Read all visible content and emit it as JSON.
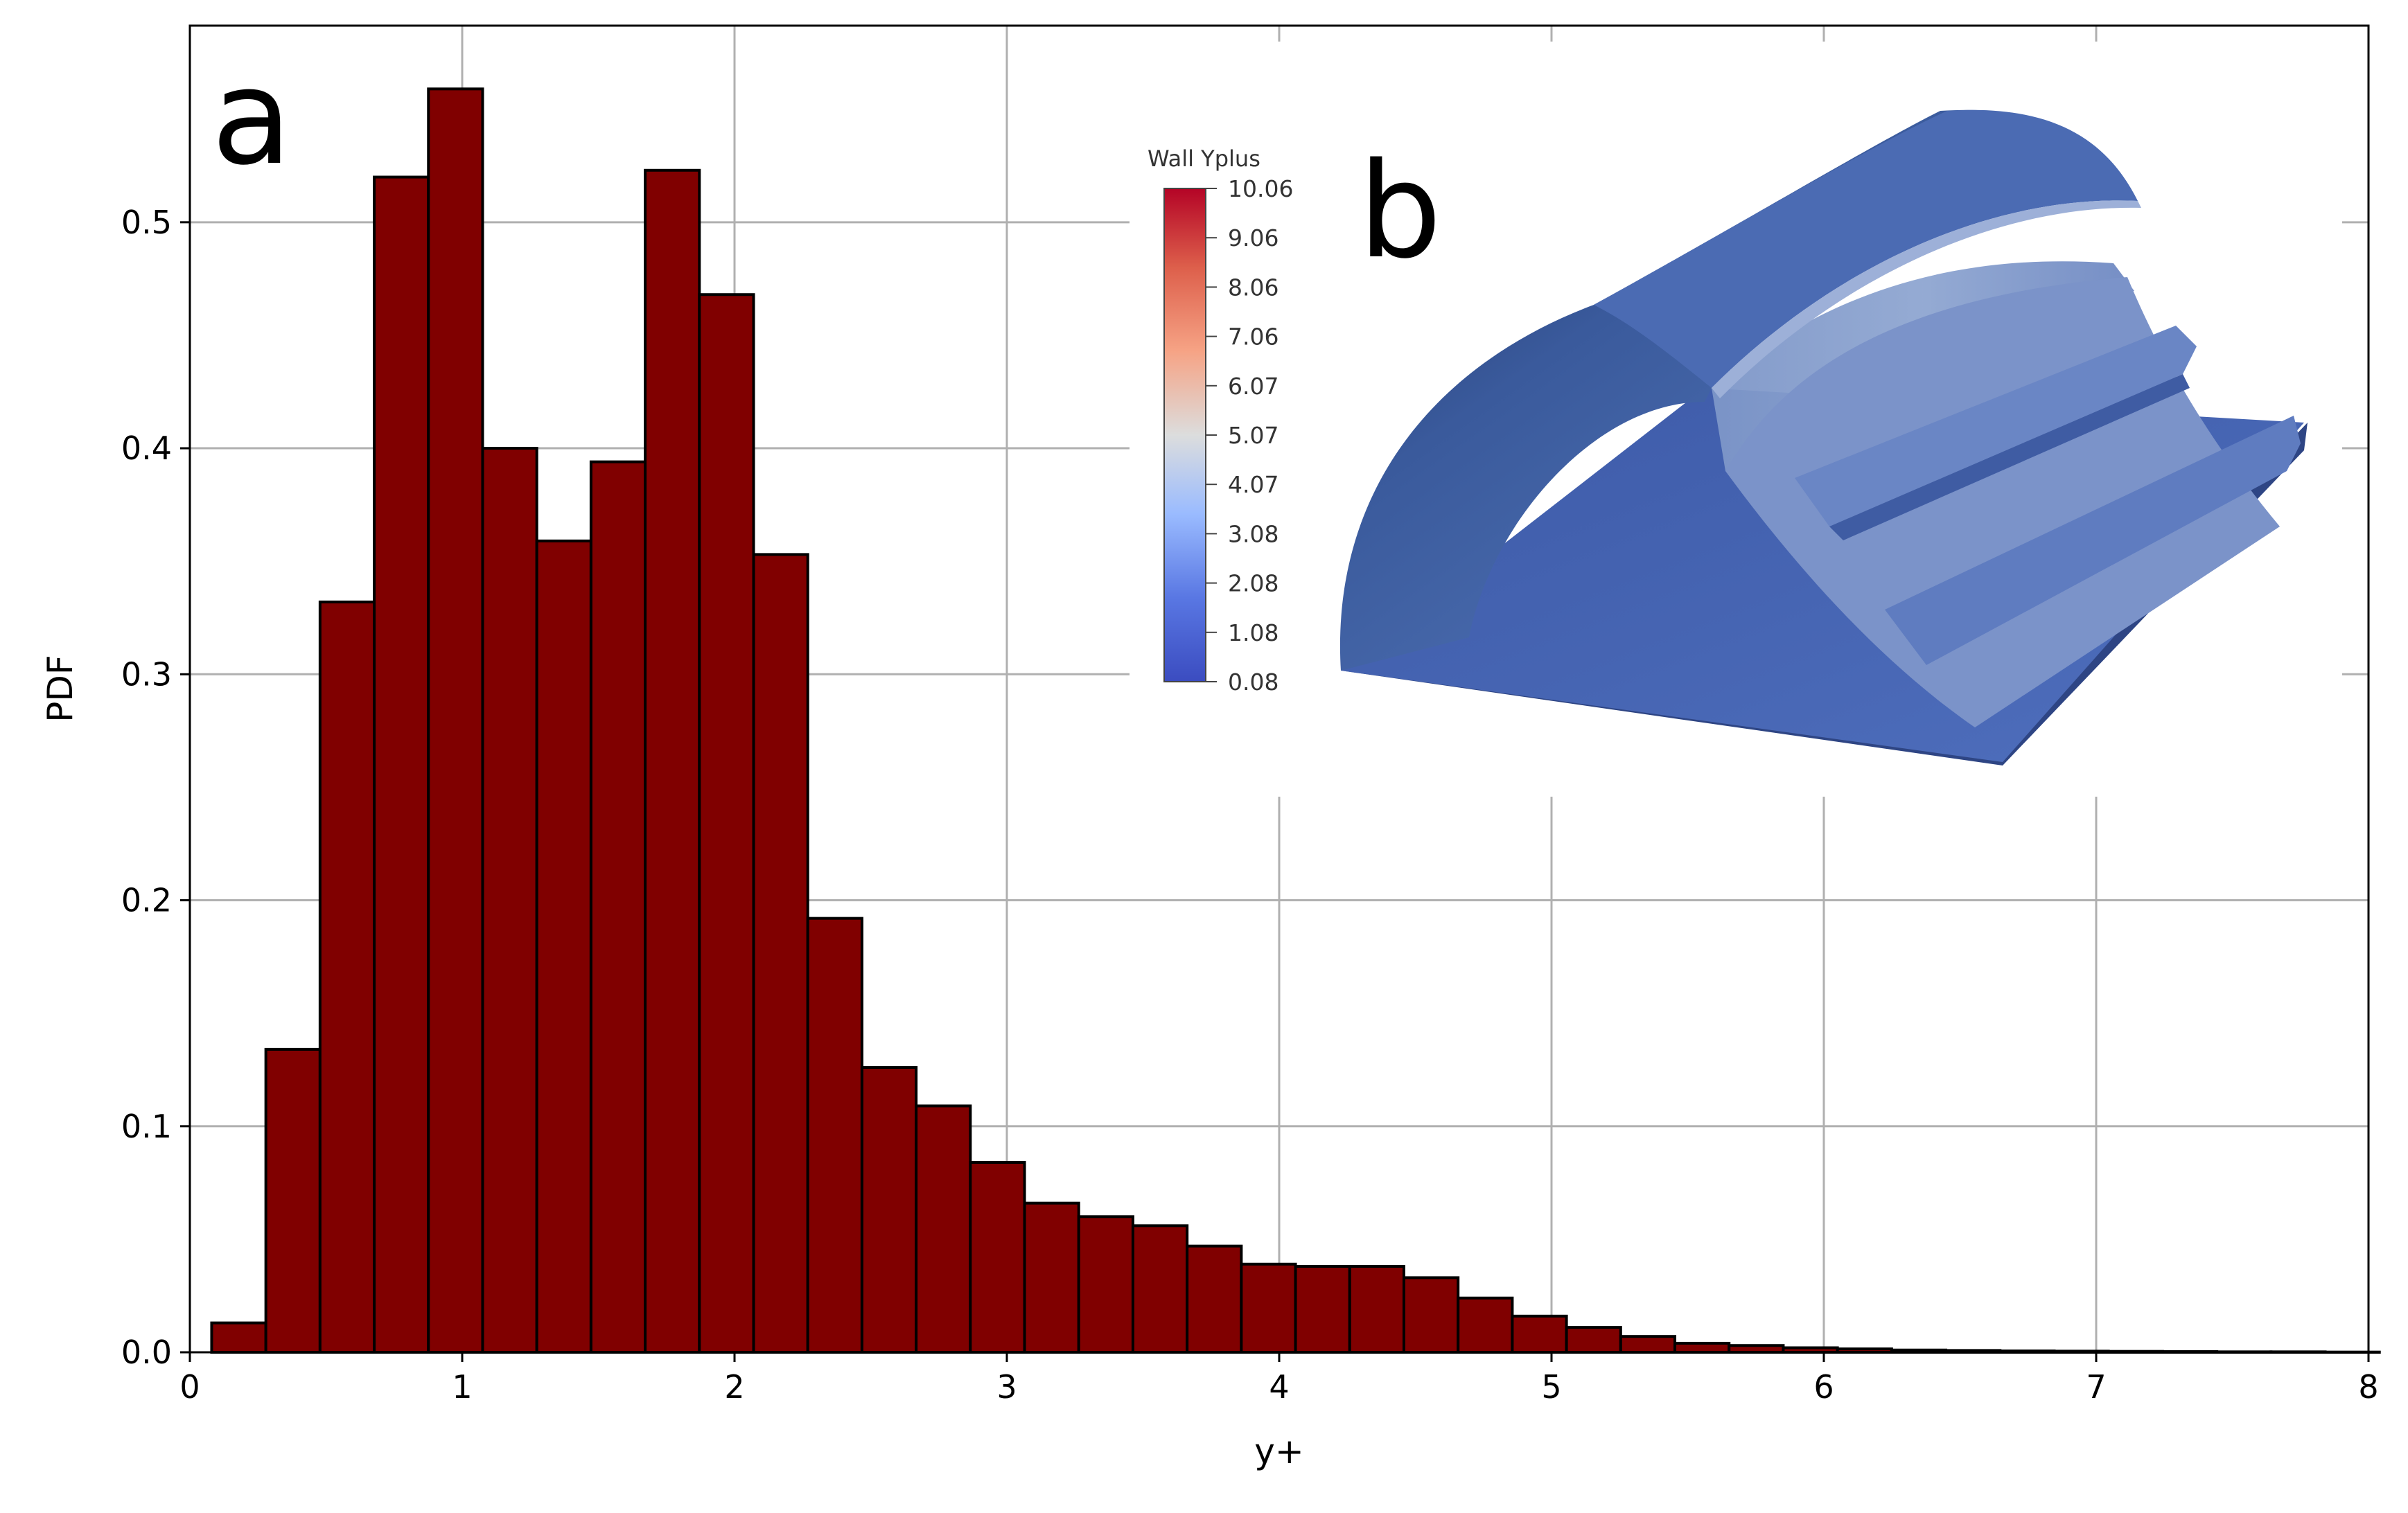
{
  "chart_data": {
    "type": "bar",
    "xlabel": "y+",
    "ylabel": "PDF",
    "xlim": [
      0,
      8
    ],
    "ylim": [
      0,
      0.587
    ],
    "xticks": [
      0,
      1,
      2,
      3,
      4,
      5,
      6,
      7,
      8
    ],
    "yticks": [
      0.0,
      0.1,
      0.2,
      0.3,
      0.4,
      0.5
    ],
    "xtick_labels": [
      "0",
      "1",
      "2",
      "3",
      "4",
      "5",
      "6",
      "7",
      "8"
    ],
    "ytick_labels": [
      "0.0",
      "0.1",
      "0.2",
      "0.3",
      "0.4",
      "0.5"
    ],
    "grid": true,
    "bar_color": "#800000",
    "bin_start": 0.08,
    "bin_width": 0.199,
    "values": [
      0.013,
      0.134,
      0.332,
      0.52,
      0.559,
      0.4,
      0.359,
      0.394,
      0.523,
      0.468,
      0.353,
      0.192,
      0.126,
      0.109,
      0.084,
      0.066,
      0.06,
      0.056,
      0.047,
      0.039,
      0.038,
      0.038,
      0.033,
      0.024,
      0.016,
      0.011,
      0.007,
      0.004,
      0.003,
      0.002,
      0.0015,
      0.001,
      0.0008,
      0.0006,
      0.0005,
      0.0004,
      0.0003,
      0.0002,
      0.0002,
      0.0001
    ]
  },
  "panel_a_label": "a",
  "panel_b_label": "b",
  "inset": {
    "colorbar_title": "Wall Yplus",
    "colorbar_labels": [
      "10.06",
      "9.06",
      "8.06",
      "7.06",
      "6.07",
      "5.07",
      "4.07",
      "3.08",
      "2.08",
      "1.08",
      "0.08"
    ],
    "colormap_colors": [
      "#b40426",
      "#dd5f4b",
      "#f6a385",
      "#dcdddd",
      "#9abbff",
      "#5977e3",
      "#3b4cc0"
    ],
    "geometry": "blue 3D half-cylinder wall with surface coloring"
  }
}
